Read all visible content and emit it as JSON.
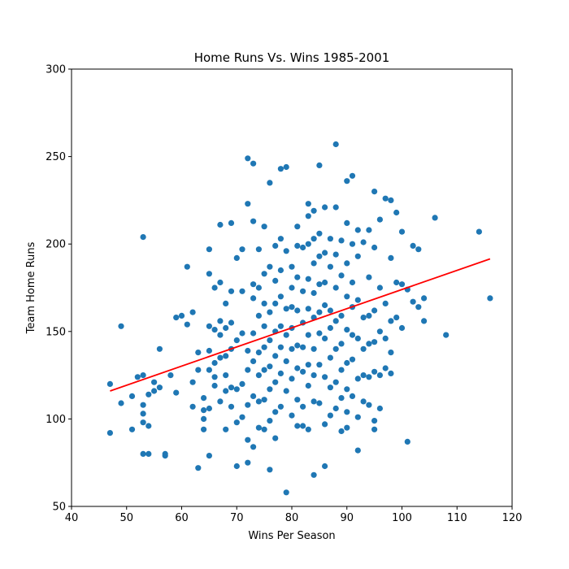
{
  "chart_data": {
    "type": "scatter",
    "title": "Home Runs Vs. Wins 1985-2001",
    "xlabel": "Wins Per Season",
    "ylabel": "Team Home Runs",
    "xlim": [
      40,
      120
    ],
    "ylim": [
      50,
      300
    ],
    "xticks": [
      40,
      50,
      60,
      70,
      80,
      90,
      100,
      110,
      120
    ],
    "yticks": [
      50,
      100,
      150,
      200,
      250,
      300
    ],
    "grid": false,
    "colors": {
      "points": "#1f77b4",
      "fit_line": "#ff0000"
    },
    "fit_line": {
      "x": [
        47,
        116
      ],
      "y": [
        116,
        191.5
      ]
    },
    "points": {
      "x": [
        47,
        47,
        49,
        49,
        51,
        51,
        52,
        53,
        53,
        53,
        53,
        53,
        53,
        54,
        54,
        54,
        55,
        55,
        56,
        56,
        57,
        57,
        58,
        59,
        59,
        60,
        61,
        61,
        62,
        62,
        62,
        63,
        63,
        63,
        64,
        64,
        64,
        64,
        65,
        65,
        65,
        65,
        65,
        65,
        65,
        66,
        66,
        66,
        66,
        66,
        67,
        67,
        67,
        67,
        67,
        67,
        68,
        68,
        68,
        68,
        68,
        68,
        69,
        69,
        69,
        69,
        69,
        69,
        70,
        70,
        70,
        70,
        70,
        71,
        71,
        71,
        71,
        71,
        72,
        72,
        72,
        72,
        72,
        72,
        72,
        73,
        73,
        73,
        73,
        73,
        73,
        73,
        73,
        74,
        74,
        74,
        74,
        74,
        74,
        74,
        75,
        75,
        75,
        75,
        75,
        75,
        75,
        75,
        76,
        76,
        76,
        76,
        76,
        76,
        76,
        76,
        77,
        77,
        77,
        77,
        77,
        77,
        77,
        77,
        78,
        78,
        78,
        78,
        78,
        78,
        78,
        78,
        79,
        79,
        79,
        79,
        79,
        79,
        79,
        80,
        80,
        80,
        80,
        80,
        80,
        80,
        81,
        81,
        81,
        81,
        81,
        81,
        81,
        81,
        82,
        82,
        82,
        82,
        82,
        82,
        82,
        83,
        83,
        83,
        83,
        83,
        83,
        83,
        83,
        83,
        84,
        84,
        84,
        84,
        84,
        84,
        84,
        84,
        84,
        85,
        85,
        85,
        85,
        85,
        85,
        85,
        85,
        86,
        86,
        86,
        86,
        86,
        86,
        86,
        86,
        87,
        87,
        87,
        87,
        87,
        87,
        87,
        88,
        88,
        88,
        88,
        88,
        88,
        88,
        88,
        89,
        89,
        89,
        89,
        89,
        89,
        89,
        90,
        90,
        90,
        90,
        90,
        90,
        90,
        90,
        90,
        91,
        91,
        91,
        91,
        91,
        91,
        91,
        92,
        92,
        92,
        92,
        92,
        92,
        92,
        93,
        93,
        93,
        93,
        93,
        94,
        94,
        94,
        94,
        94,
        94,
        95,
        95,
        95,
        95,
        95,
        95,
        95,
        96,
        96,
        96,
        96,
        96,
        97,
        97,
        97,
        97,
        98,
        98,
        98,
        98,
        98,
        99,
        99,
        99,
        100,
        100,
        100,
        101,
        101,
        102,
        102,
        103,
        103,
        104,
        104,
        106,
        108,
        114,
        116
      ],
      "y": [
        92,
        120,
        109,
        153,
        94,
        113,
        124,
        80,
        98,
        103,
        108,
        125,
        204,
        80,
        96,
        114,
        116,
        121,
        118,
        140,
        79,
        80,
        125,
        115,
        158,
        159,
        154,
        187,
        107,
        121,
        161,
        72,
        128,
        138,
        94,
        100,
        105,
        112,
        79,
        106,
        128,
        139,
        153,
        183,
        197,
        119,
        124,
        132,
        151,
        175,
        110,
        135,
        148,
        156,
        178,
        211,
        94,
        116,
        125,
        136,
        152,
        166,
        107,
        118,
        140,
        155,
        173,
        212,
        73,
        98,
        117,
        145,
        192,
        101,
        120,
        149,
        173,
        197,
        75,
        88,
        108,
        128,
        139,
        223,
        249,
        84,
        113,
        133,
        149,
        169,
        177,
        213,
        246,
        95,
        110,
        125,
        138,
        159,
        175,
        197,
        94,
        111,
        128,
        141,
        153,
        166,
        183,
        210,
        71,
        99,
        117,
        130,
        145,
        161,
        187,
        235,
        89,
        104,
        121,
        136,
        150,
        166,
        179,
        199,
        107,
        126,
        141,
        153,
        170,
        185,
        203,
        243,
        58,
        116,
        133,
        148,
        163,
        196,
        244,
        102,
        123,
        140,
        152,
        164,
        175,
        187,
        96,
        111,
        129,
        142,
        162,
        181,
        199,
        210,
        96,
        107,
        127,
        141,
        155,
        173,
        198,
        94,
        119,
        131,
        148,
        163,
        180,
        200,
        216,
        223,
        68,
        110,
        125,
        140,
        158,
        172,
        189,
        203,
        219,
        109,
        131,
        149,
        161,
        177,
        193,
        206,
        245,
        73,
        97,
        124,
        146,
        165,
        178,
        195,
        221,
        102,
        118,
        135,
        152,
        162,
        187,
        203,
        106,
        121,
        140,
        156,
        175,
        194,
        221,
        257,
        93,
        112,
        128,
        143,
        159,
        182,
        202,
        95,
        104,
        117,
        132,
        151,
        170,
        189,
        212,
        236,
        113,
        134,
        148,
        164,
        178,
        200,
        239,
        82,
        101,
        123,
        146,
        168,
        193,
        208,
        110,
        125,
        140,
        158,
        201,
        108,
        124,
        143,
        159,
        181,
        208,
        94,
        99,
        127,
        144,
        162,
        198,
        230,
        106,
        125,
        150,
        175,
        214,
        129,
        146,
        166,
        226,
        126,
        138,
        156,
        192,
        225,
        158,
        178,
        218,
        152,
        177,
        207,
        87,
        174,
        167,
        199,
        164,
        197,
        156,
        169,
        215,
        148,
        207,
        169
      ]
    }
  }
}
